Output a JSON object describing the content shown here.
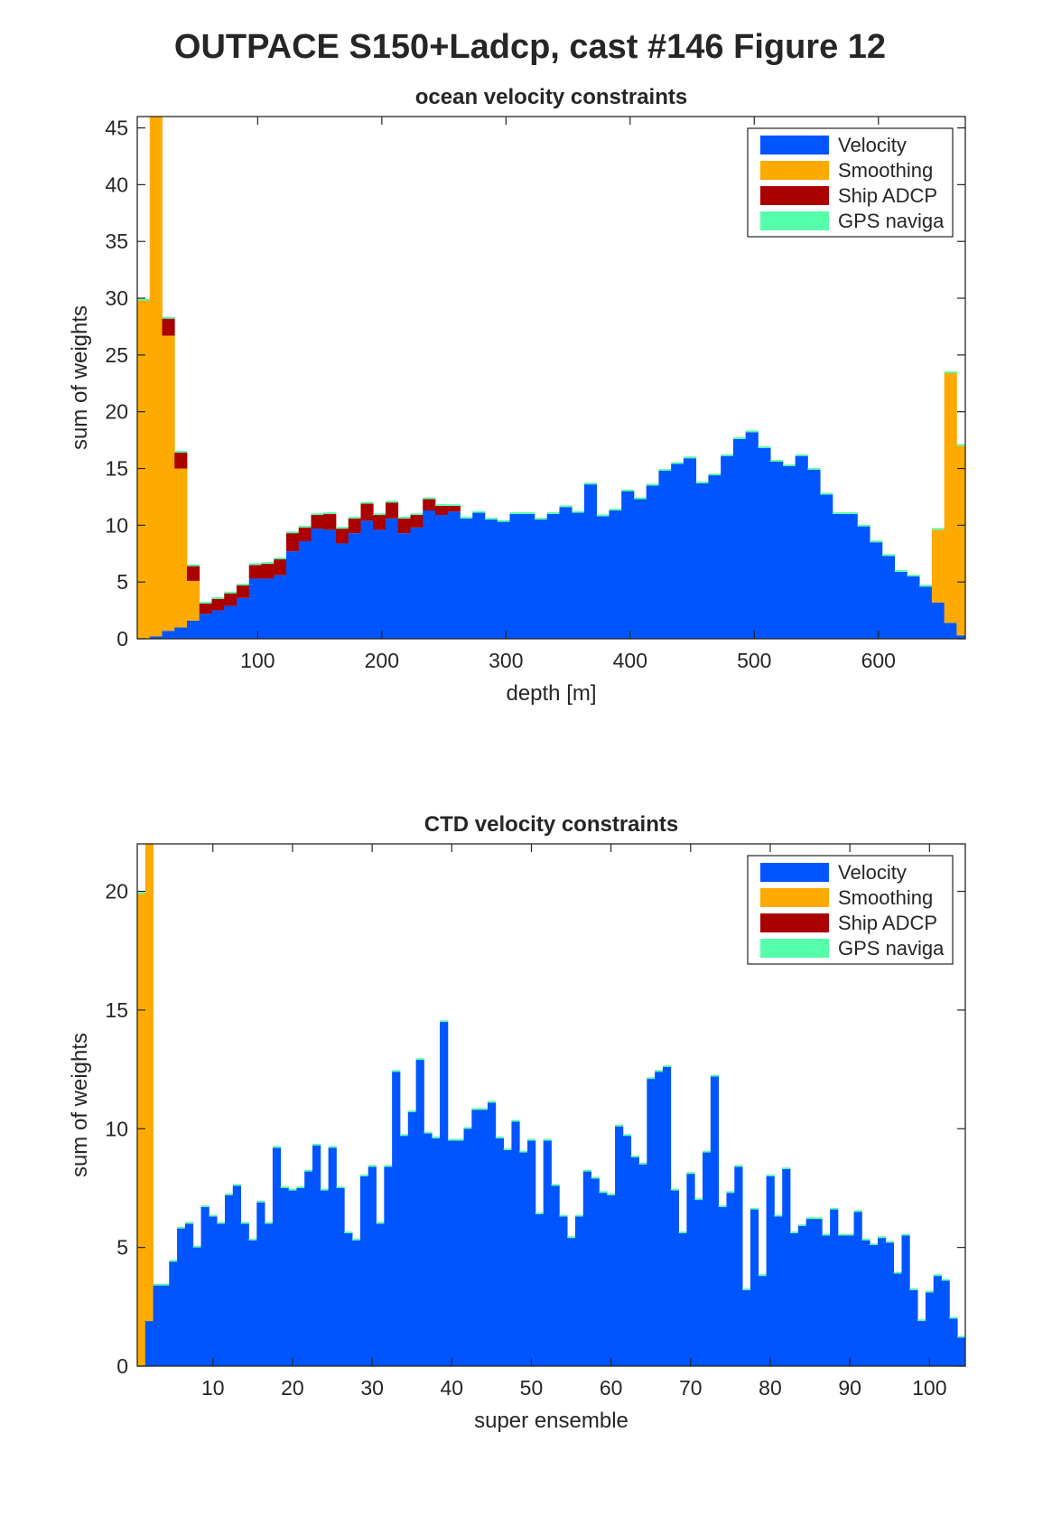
{
  "figure": {
    "title": "OUTPACE S150+Ladcp, cast #146  Figure 12"
  },
  "colors": {
    "velocity": "#0055FF",
    "smoothing": "#FFAA00",
    "ship_adcp": "#AA0000",
    "gps": "#55FFAA"
  },
  "chart_data": [
    {
      "type": "bar",
      "stacked": true,
      "title": "ocean velocity constraints",
      "xlabel": "depth [m]",
      "ylabel": "sum of weights",
      "xlim": [
        3,
        670
      ],
      "ylim": [
        0,
        46
      ],
      "xticks": [
        100,
        200,
        300,
        400,
        500,
        600
      ],
      "yticks": [
        0,
        5,
        10,
        15,
        20,
        25,
        30,
        35,
        40,
        45
      ],
      "legend_position": "top-right",
      "bin_width": 10,
      "x": [
        8,
        18,
        28,
        38,
        48,
        58,
        68,
        78,
        88,
        98,
        108,
        118,
        128,
        138,
        148,
        158,
        168,
        178,
        188,
        198,
        208,
        218,
        228,
        238,
        248,
        258,
        268,
        278,
        288,
        298,
        308,
        318,
        328,
        338,
        348,
        358,
        368,
        378,
        388,
        398,
        408,
        418,
        428,
        438,
        448,
        458,
        468,
        478,
        488,
        498,
        508,
        518,
        528,
        538,
        548,
        558,
        568,
        578,
        588,
        598,
        608,
        618,
        628,
        638,
        648,
        658,
        668
      ],
      "series": [
        {
          "name": "Velocity",
          "color": "#0055FF",
          "values": [
            0,
            0.2,
            0.7,
            1.0,
            1.6,
            2.2,
            2.5,
            2.9,
            3.6,
            5.3,
            5.3,
            5.6,
            7.7,
            8.6,
            9.7,
            9.6,
            8.4,
            9.3,
            10.4,
            9.6,
            10.6,
            9.3,
            9.8,
            11.3,
            10.9,
            11.2,
            10.6,
            11.1,
            10.5,
            10.3,
            11.0,
            11.0,
            10.5,
            11.0,
            11.6,
            11.1,
            13.6,
            10.8,
            11.3,
            13.0,
            12.3,
            13.5,
            14.8,
            15.4,
            15.9,
            13.7,
            14.4,
            16.1,
            17.6,
            18.2,
            16.8,
            15.6,
            15.2,
            16.1,
            14.9,
            12.7,
            11.0,
            11.0,
            9.9,
            8.5,
            7.3,
            5.9,
            5.5,
            4.6,
            3.2,
            1.4,
            0.3
          ]
        },
        {
          "name": "Smoothing",
          "color": "#FFAA00",
          "values": [
            29.8,
            46.0,
            26.0,
            14.0,
            3.5,
            0,
            0,
            0,
            0,
            0,
            0,
            0,
            0,
            0,
            0,
            0,
            0,
            0,
            0,
            0,
            0,
            0,
            0,
            0,
            0,
            0,
            0,
            0,
            0,
            0,
            0,
            0,
            0,
            0,
            0,
            0,
            0,
            0,
            0,
            0,
            0,
            0,
            0,
            0,
            0,
            0,
            0,
            0,
            0,
            0,
            0,
            0,
            0,
            0,
            0,
            0,
            0,
            0,
            0,
            0,
            0,
            0,
            0,
            0,
            6.4,
            22.0,
            16.7
          ]
        },
        {
          "name": "Ship ADCP",
          "color": "#AA0000",
          "values": [
            0,
            0,
            1.5,
            1.4,
            1.3,
            0.9,
            1.0,
            1.1,
            1.1,
            1.2,
            1.3,
            1.4,
            1.6,
            1.2,
            1.2,
            1.4,
            1.3,
            1.3,
            1.5,
            1.3,
            1.4,
            1.3,
            1.1,
            1.0,
            0.8,
            0.5,
            0,
            0,
            0,
            0,
            0,
            0,
            0,
            0,
            0,
            0,
            0,
            0,
            0,
            0,
            0,
            0,
            0,
            0,
            0,
            0,
            0,
            0,
            0,
            0,
            0,
            0,
            0,
            0,
            0,
            0,
            0,
            0,
            0,
            0,
            0,
            0,
            0,
            0,
            0,
            0,
            0
          ]
        },
        {
          "name": "GPS naviga",
          "color": "#55FFAA",
          "values": [
            0.15,
            0.15,
            0.15,
            0.15,
            0.15,
            0.15,
            0.15,
            0.15,
            0.15,
            0.15,
            0.15,
            0.15,
            0.15,
            0.15,
            0.15,
            0.15,
            0.15,
            0.15,
            0.15,
            0.15,
            0.15,
            0.15,
            0.15,
            0.15,
            0.15,
            0.15,
            0.15,
            0.15,
            0.15,
            0.15,
            0.15,
            0.15,
            0.15,
            0.15,
            0.15,
            0.15,
            0.15,
            0.15,
            0.15,
            0.15,
            0.15,
            0.15,
            0.15,
            0.15,
            0.15,
            0.15,
            0.15,
            0.15,
            0.15,
            0.15,
            0.15,
            0.15,
            0.15,
            0.15,
            0.15,
            0.15,
            0.15,
            0.15,
            0.15,
            0.15,
            0.15,
            0.15,
            0.15,
            0.15,
            0.15,
            0.15,
            0.15
          ]
        }
      ]
    },
    {
      "type": "bar",
      "stacked": true,
      "title": "CTD velocity constraints",
      "xlabel": "super ensemble",
      "ylabel": "sum of weights",
      "xlim": [
        0.5,
        104.5
      ],
      "ylim": [
        0,
        22
      ],
      "xticks": [
        10,
        20,
        30,
        40,
        50,
        60,
        70,
        80,
        90,
        100
      ],
      "yticks": [
        0,
        5,
        10,
        15,
        20
      ],
      "legend_position": "top-right",
      "bin_width": 1,
      "x": [
        1,
        2,
        3,
        4,
        5,
        6,
        7,
        8,
        9,
        10,
        11,
        12,
        13,
        14,
        15,
        16,
        17,
        18,
        19,
        20,
        21,
        22,
        23,
        24,
        25,
        26,
        27,
        28,
        29,
        30,
        31,
        32,
        33,
        34,
        35,
        36,
        37,
        38,
        39,
        40,
        41,
        42,
        43,
        44,
        45,
        46,
        47,
        48,
        49,
        50,
        51,
        52,
        53,
        54,
        55,
        56,
        57,
        58,
        59,
        60,
        61,
        62,
        63,
        64,
        65,
        66,
        67,
        68,
        69,
        70,
        71,
        72,
        73,
        74,
        75,
        76,
        77,
        78,
        79,
        80,
        81,
        82,
        83,
        84,
        85,
        86,
        87,
        88,
        89,
        90,
        91,
        92,
        93,
        94,
        95,
        96,
        97,
        98,
        99,
        100,
        101,
        102,
        103,
        104
      ],
      "series": [
        {
          "name": "Velocity",
          "color": "#0055FF",
          "values": [
            0,
            1.9,
            3.4,
            3.4,
            4.4,
            5.8,
            6.0,
            5.0,
            6.7,
            6.3,
            6.0,
            7.2,
            7.6,
            6.0,
            5.3,
            6.9,
            6.0,
            9.2,
            7.5,
            7.4,
            7.5,
            8.2,
            9.3,
            7.4,
            9.2,
            7.5,
            5.6,
            5.3,
            8.0,
            8.4,
            6.0,
            8.4,
            12.4,
            9.7,
            10.7,
            12.9,
            9.8,
            9.6,
            14.5,
            9.5,
            9.5,
            10.0,
            10.8,
            10.8,
            11.1,
            9.6,
            9.1,
            10.3,
            9.0,
            9.5,
            6.4,
            9.5,
            7.6,
            6.3,
            5.4,
            6.3,
            8.2,
            7.9,
            7.3,
            7.2,
            10.1,
            9.7,
            8.8,
            8.5,
            12.1,
            12.4,
            12.6,
            7.4,
            5.6,
            8.1,
            7.0,
            9.0,
            12.2,
            6.7,
            7.3,
            8.4,
            3.2,
            6.6,
            3.8,
            8.0,
            6.3,
            8.3,
            5.6,
            5.9,
            6.2,
            6.2,
            5.5,
            6.6,
            5.5,
            5.5,
            6.5,
            5.3,
            5.1,
            5.4,
            5.2,
            3.9,
            5.5,
            3.2,
            1.9,
            3.1,
            3.8,
            3.6,
            2.0,
            1.2
          ]
        },
        {
          "name": "Smoothing",
          "color": "#FFAA00",
          "values": [
            19.9,
            20.2,
            0,
            0,
            0,
            0,
            0,
            0,
            0,
            0,
            0,
            0,
            0,
            0,
            0,
            0,
            0,
            0,
            0,
            0,
            0,
            0,
            0,
            0,
            0,
            0,
            0,
            0,
            0,
            0,
            0,
            0,
            0,
            0,
            0,
            0,
            0,
            0,
            0,
            0,
            0,
            0,
            0,
            0,
            0,
            0,
            0,
            0,
            0,
            0,
            0,
            0,
            0,
            0,
            0,
            0,
            0,
            0,
            0,
            0,
            0,
            0,
            0,
            0,
            0,
            0,
            0,
            0,
            0,
            0,
            0,
            0,
            0,
            0,
            0,
            0,
            0,
            0,
            0,
            0,
            0,
            0,
            0,
            0,
            0,
            0,
            0,
            0,
            0,
            0,
            0,
            0,
            0,
            0,
            0,
            0,
            0,
            0,
            0,
            0,
            0,
            0,
            0,
            0
          ]
        },
        {
          "name": "Ship ADCP",
          "color": "#AA0000",
          "values": [
            0,
            0,
            0,
            0,
            0,
            0,
            0,
            0,
            0,
            0,
            0,
            0,
            0,
            0,
            0,
            0,
            0,
            0,
            0,
            0,
            0,
            0,
            0,
            0,
            0,
            0,
            0,
            0,
            0,
            0,
            0,
            0,
            0,
            0,
            0,
            0,
            0,
            0,
            0,
            0,
            0,
            0,
            0,
            0,
            0,
            0,
            0,
            0,
            0,
            0,
            0,
            0,
            0,
            0,
            0,
            0,
            0,
            0,
            0,
            0,
            0,
            0,
            0,
            0,
            0,
            0,
            0,
            0,
            0,
            0,
            0,
            0,
            0,
            0,
            0,
            0,
            0,
            0,
            0,
            0,
            0,
            0,
            0,
            0,
            0,
            0,
            0,
            0,
            0,
            0,
            0,
            0,
            0,
            0,
            0,
            0,
            0,
            0,
            0,
            0,
            0,
            0,
            0,
            0
          ]
        },
        {
          "name": "GPS naviga",
          "color": "#55FFAA",
          "values": [
            0.07,
            0.07,
            0.07,
            0.07,
            0.07,
            0.07,
            0.07,
            0.07,
            0.07,
            0.07,
            0.07,
            0.07,
            0.07,
            0.07,
            0.07,
            0.07,
            0.07,
            0.07,
            0.07,
            0.07,
            0.07,
            0.07,
            0.07,
            0.07,
            0.07,
            0.07,
            0.07,
            0.07,
            0.07,
            0.07,
            0.07,
            0.07,
            0.07,
            0.07,
            0.07,
            0.07,
            0.07,
            0.07,
            0.07,
            0.07,
            0.07,
            0.07,
            0.07,
            0.07,
            0.07,
            0.07,
            0.07,
            0.07,
            0.07,
            0.07,
            0.07,
            0.07,
            0.07,
            0.07,
            0.07,
            0.07,
            0.07,
            0.07,
            0.07,
            0.07,
            0.07,
            0.07,
            0.07,
            0.07,
            0.07,
            0.07,
            0.07,
            0.07,
            0.07,
            0.07,
            0.07,
            0.07,
            0.07,
            0.07,
            0.07,
            0.07,
            0.07,
            0.07,
            0.07,
            0.07,
            0.07,
            0.07,
            0.07,
            0.07,
            0.07,
            0.07,
            0.07,
            0.07,
            0.07,
            0.07,
            0.07,
            0.07,
            0.07,
            0.07,
            0.07,
            0.07,
            0.07,
            0.07,
            0.07,
            0.07,
            0.07,
            0.07,
            0.07,
            0.07
          ]
        }
      ]
    }
  ]
}
